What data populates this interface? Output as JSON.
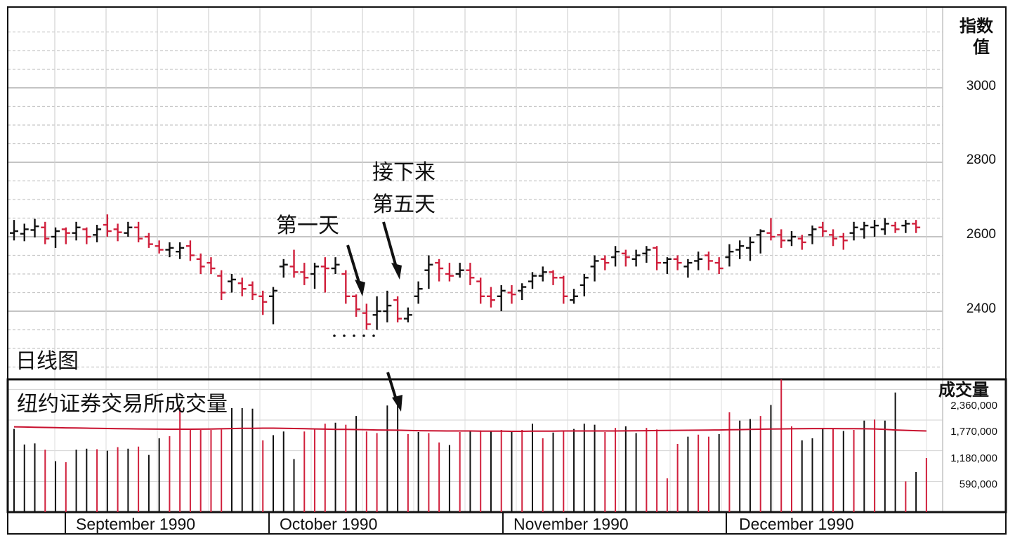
{
  "chart_data": {
    "type": "ohlc",
    "title": "",
    "panel_label": "日线图",
    "y_axis_label": "指数值",
    "y_ticks": [
      "2400",
      "2600",
      "2800",
      "3000"
    ],
    "y_range": [
      2180,
      2800
    ],
    "grid": true,
    "annotations": {
      "first_day": "第一天",
      "fifth_day_line1": "接下来",
      "fifth_day_line2": "第五天"
    },
    "x_months": [
      "September 1990",
      "October 1990",
      "November 1990",
      "December 1990"
    ],
    "colors": {
      "up": "#111111",
      "down": "#d0203c",
      "average": "#c8102e",
      "grid": "#c8c8c8"
    },
    "bars": [
      {
        "date": "1990-09-04",
        "open": 2610,
        "high": 2645,
        "low": 2590,
        "close": 2615,
        "dir": "up"
      },
      {
        "date": "1990-09-05",
        "open": 2608,
        "high": 2635,
        "low": 2588,
        "close": 2620,
        "dir": "up"
      },
      {
        "date": "1990-09-06",
        "open": 2618,
        "high": 2648,
        "low": 2598,
        "close": 2628,
        "dir": "up"
      },
      {
        "date": "1990-09-07",
        "open": 2625,
        "high": 2640,
        "low": 2580,
        "close": 2595,
        "dir": "down"
      },
      {
        "date": "1990-09-10",
        "open": 2600,
        "high": 2625,
        "low": 2570,
        "close": 2615,
        "dir": "up"
      },
      {
        "date": "1990-09-11",
        "open": 2620,
        "high": 2625,
        "low": 2580,
        "close": 2610,
        "dir": "down"
      },
      {
        "date": "1990-09-12",
        "open": 2610,
        "high": 2640,
        "low": 2590,
        "close": 2625,
        "dir": "up"
      },
      {
        "date": "1990-09-13",
        "open": 2620,
        "high": 2625,
        "low": 2580,
        "close": 2600,
        "dir": "down"
      },
      {
        "date": "1990-09-14",
        "open": 2605,
        "high": 2632,
        "low": 2585,
        "close": 2620,
        "dir": "up"
      },
      {
        "date": "1990-09-17",
        "open": 2632,
        "high": 2660,
        "low": 2600,
        "close": 2615,
        "dir": "down"
      },
      {
        "date": "1990-09-18",
        "open": 2620,
        "high": 2635,
        "low": 2588,
        "close": 2612,
        "dir": "down"
      },
      {
        "date": "1990-09-19",
        "open": 2610,
        "high": 2640,
        "low": 2600,
        "close": 2625,
        "dir": "up"
      },
      {
        "date": "1990-09-20",
        "open": 2625,
        "high": 2640,
        "low": 2585,
        "close": 2595,
        "dir": "down"
      },
      {
        "date": "1990-09-21",
        "open": 2600,
        "high": 2610,
        "low": 2570,
        "close": 2580,
        "dir": "down"
      },
      {
        "date": "1990-09-24",
        "open": 2575,
        "high": 2590,
        "low": 2555,
        "close": 2565,
        "dir": "down"
      },
      {
        "date": "1990-09-25",
        "open": 2565,
        "high": 2585,
        "low": 2545,
        "close": 2570,
        "dir": "up"
      },
      {
        "date": "1990-09-26",
        "open": 2560,
        "high": 2585,
        "low": 2540,
        "close": 2570,
        "dir": "up"
      },
      {
        "date": "1990-09-27",
        "open": 2575,
        "high": 2590,
        "low": 2535,
        "close": 2550,
        "dir": "down"
      },
      {
        "date": "1990-09-28",
        "open": 2540,
        "high": 2555,
        "low": 2500,
        "close": 2520,
        "dir": "down"
      },
      {
        "date": "1990-10-01",
        "open": 2530,
        "high": 2545,
        "low": 2500,
        "close": 2515,
        "dir": "down"
      },
      {
        "date": "1990-10-02",
        "open": 2495,
        "high": 2510,
        "low": 2430,
        "close": 2450,
        "dir": "down"
      },
      {
        "date": "1990-10-03",
        "open": 2480,
        "high": 2500,
        "low": 2450,
        "close": 2485,
        "dir": "up"
      },
      {
        "date": "1990-10-04",
        "open": 2475,
        "high": 2490,
        "low": 2440,
        "close": 2460,
        "dir": "down"
      },
      {
        "date": "1990-10-05",
        "open": 2470,
        "high": 2480,
        "low": 2430,
        "close": 2445,
        "dir": "down"
      },
      {
        "date": "1990-10-08",
        "open": 2440,
        "high": 2455,
        "low": 2390,
        "close": 2425,
        "dir": "down"
      },
      {
        "date": "1990-10-09",
        "open": 2440,
        "high": 2465,
        "low": 2365,
        "close": 2455,
        "dir": "up"
      },
      {
        "date": "1990-10-10",
        "open": 2520,
        "high": 2540,
        "low": 2490,
        "close": 2525,
        "dir": "up"
      },
      {
        "date": "1990-10-11",
        "open": 2520,
        "high": 2565,
        "low": 2490,
        "close": 2505,
        "dir": "down"
      },
      {
        "date": "1990-10-12",
        "open": 2505,
        "high": 2530,
        "low": 2470,
        "close": 2490,
        "dir": "down"
      },
      {
        "date": "1990-10-15",
        "open": 2500,
        "high": 2530,
        "low": 2460,
        "close": 2520,
        "dir": "up"
      },
      {
        "date": "1990-10-16",
        "open": 2520,
        "high": 2545,
        "low": 2450,
        "close": 2515,
        "dir": "down"
      },
      {
        "date": "1990-10-17",
        "open": 2515,
        "high": 2545,
        "low": 2500,
        "close": 2525,
        "dir": "up"
      },
      {
        "date": "1990-10-18",
        "open": 2500,
        "high": 2510,
        "low": 2420,
        "close": 2440,
        "dir": "down"
      },
      {
        "date": "1990-10-19",
        "open": 2440,
        "high": 2445,
        "low": 2385,
        "close": 2405,
        "dir": "down"
      },
      {
        "date": "1990-10-22",
        "open": 2395,
        "high": 2420,
        "low": 2350,
        "close": 2365,
        "dir": "down"
      },
      {
        "date": "1990-10-23",
        "open": 2390,
        "high": 2440,
        "low": 2350,
        "close": 2400,
        "dir": "up"
      },
      {
        "date": "1990-10-24",
        "open": 2400,
        "high": 2455,
        "low": 2370,
        "close": 2415,
        "dir": "up"
      },
      {
        "date": "1990-10-25",
        "open": 2430,
        "high": 2440,
        "low": 2370,
        "close": 2380,
        "dir": "down"
      },
      {
        "date": "1990-10-26",
        "open": 2380,
        "high": 2410,
        "low": 2370,
        "close": 2390,
        "dir": "up"
      },
      {
        "date": "1990-10-29",
        "open": 2440,
        "high": 2480,
        "low": 2420,
        "close": 2460,
        "dir": "up"
      },
      {
        "date": "1990-10-30",
        "open": 2510,
        "high": 2550,
        "low": 2460,
        "close": 2525,
        "dir": "up"
      },
      {
        "date": "1990-10-31",
        "open": 2530,
        "high": 2540,
        "low": 2480,
        "close": 2515,
        "dir": "down"
      },
      {
        "date": "1990-11-01",
        "open": 2500,
        "high": 2530,
        "low": 2480,
        "close": 2495,
        "dir": "down"
      },
      {
        "date": "1990-11-02",
        "open": 2500,
        "high": 2530,
        "low": 2490,
        "close": 2510,
        "dir": "up"
      },
      {
        "date": "1990-11-05",
        "open": 2510,
        "high": 2530,
        "low": 2470,
        "close": 2490,
        "dir": "down"
      },
      {
        "date": "1990-11-06",
        "open": 2480,
        "high": 2490,
        "low": 2420,
        "close": 2440,
        "dir": "down"
      },
      {
        "date": "1990-11-07",
        "open": 2440,
        "high": 2465,
        "low": 2410,
        "close": 2430,
        "dir": "down"
      },
      {
        "date": "1990-11-08",
        "open": 2440,
        "high": 2470,
        "low": 2400,
        "close": 2455,
        "dir": "up"
      },
      {
        "date": "1990-11-09",
        "open": 2450,
        "high": 2470,
        "low": 2420,
        "close": 2445,
        "dir": "down"
      },
      {
        "date": "1990-11-12",
        "open": 2455,
        "high": 2475,
        "low": 2430,
        "close": 2465,
        "dir": "up"
      },
      {
        "date": "1990-11-13",
        "open": 2480,
        "high": 2505,
        "low": 2460,
        "close": 2495,
        "dir": "up"
      },
      {
        "date": "1990-11-14",
        "open": 2495,
        "high": 2520,
        "low": 2480,
        "close": 2505,
        "dir": "up"
      },
      {
        "date": "1990-11-15",
        "open": 2505,
        "high": 2510,
        "low": 2470,
        "close": 2490,
        "dir": "down"
      },
      {
        "date": "1990-11-16",
        "open": 2490,
        "high": 2495,
        "low": 2420,
        "close": 2440,
        "dir": "down"
      },
      {
        "date": "1990-11-19",
        "open": 2430,
        "high": 2460,
        "low": 2420,
        "close": 2440,
        "dir": "up"
      },
      {
        "date": "1990-11-20",
        "open": 2470,
        "high": 2500,
        "low": 2440,
        "close": 2490,
        "dir": "up"
      },
      {
        "date": "1990-11-21",
        "open": 2520,
        "high": 2550,
        "low": 2480,
        "close": 2535,
        "dir": "up"
      },
      {
        "date": "1990-11-23",
        "open": 2540,
        "high": 2550,
        "low": 2510,
        "close": 2530,
        "dir": "down"
      },
      {
        "date": "1990-11-26",
        "open": 2545,
        "high": 2575,
        "low": 2520,
        "close": 2560,
        "dir": "up"
      },
      {
        "date": "1990-11-27",
        "open": 2555,
        "high": 2565,
        "low": 2520,
        "close": 2545,
        "dir": "down"
      },
      {
        "date": "1990-11-28",
        "open": 2540,
        "high": 2565,
        "low": 2520,
        "close": 2550,
        "dir": "up"
      },
      {
        "date": "1990-11-29",
        "open": 2555,
        "high": 2575,
        "low": 2530,
        "close": 2565,
        "dir": "up"
      },
      {
        "date": "1990-11-30",
        "open": 2570,
        "high": 2575,
        "low": 2510,
        "close": 2530,
        "dir": "down"
      },
      {
        "date": "1990-12-03",
        "open": 2530,
        "high": 2545,
        "low": 2500,
        "close": 2540,
        "dir": "up"
      },
      {
        "date": "1990-12-04",
        "open": 2540,
        "high": 2550,
        "low": 2510,
        "close": 2530,
        "dir": "down"
      },
      {
        "date": "1990-12-05",
        "open": 2520,
        "high": 2540,
        "low": 2490,
        "close": 2530,
        "dir": "up"
      },
      {
        "date": "1990-12-06",
        "open": 2535,
        "high": 2560,
        "low": 2510,
        "close": 2540,
        "dir": "up"
      },
      {
        "date": "1990-12-07",
        "open": 2550,
        "high": 2560,
        "low": 2510,
        "close": 2535,
        "dir": "down"
      },
      {
        "date": "1990-12-10",
        "open": 2530,
        "high": 2545,
        "low": 2500,
        "close": 2515,
        "dir": "down"
      },
      {
        "date": "1990-12-11",
        "open": 2545,
        "high": 2580,
        "low": 2520,
        "close": 2560,
        "dir": "up"
      },
      {
        "date": "1990-12-12",
        "open": 2565,
        "high": 2590,
        "low": 2540,
        "close": 2575,
        "dir": "up"
      },
      {
        "date": "1990-12-13",
        "open": 2570,
        "high": 2600,
        "low": 2535,
        "close": 2585,
        "dir": "up"
      },
      {
        "date": "1990-12-14",
        "open": 2605,
        "high": 2620,
        "low": 2555,
        "close": 2615,
        "dir": "up"
      },
      {
        "date": "1990-12-17",
        "open": 2610,
        "high": 2650,
        "low": 2590,
        "close": 2600,
        "dir": "down"
      },
      {
        "date": "1990-12-18",
        "open": 2605,
        "high": 2620,
        "low": 2570,
        "close": 2590,
        "dir": "down"
      },
      {
        "date": "1990-12-19",
        "open": 2590,
        "high": 2615,
        "low": 2575,
        "close": 2600,
        "dir": "up"
      },
      {
        "date": "1990-12-20",
        "open": 2595,
        "high": 2605,
        "low": 2565,
        "close": 2585,
        "dir": "down"
      },
      {
        "date": "1990-12-21",
        "open": 2605,
        "high": 2630,
        "low": 2580,
        "close": 2620,
        "dir": "up"
      },
      {
        "date": "1990-12-24",
        "open": 2625,
        "high": 2640,
        "low": 2600,
        "close": 2615,
        "dir": "down"
      },
      {
        "date": "1990-12-26",
        "open": 2605,
        "high": 2620,
        "low": 2575,
        "close": 2595,
        "dir": "down"
      },
      {
        "date": "1990-12-27",
        "open": 2600,
        "high": 2610,
        "low": 2565,
        "close": 2590,
        "dir": "down"
      },
      {
        "date": "1990-12-28",
        "open": 2610,
        "high": 2640,
        "low": 2590,
        "close": 2625,
        "dir": "up"
      },
      {
        "date": "1990-12-31",
        "open": 2620,
        "high": 2640,
        "low": 2595,
        "close": 2630,
        "dir": "up"
      },
      {
        "date": "1991-01-02",
        "open": 2625,
        "high": 2645,
        "low": 2600,
        "close": 2630,
        "dir": "up"
      },
      {
        "date": "1991-01-03",
        "open": 2620,
        "high": 2650,
        "low": 2605,
        "close": 2635,
        "dir": "up"
      },
      {
        "date": "1991-01-04",
        "open": 2630,
        "high": 2640,
        "low": 2610,
        "close": 2620,
        "dir": "down"
      },
      {
        "date": "1991-01-07",
        "open": 2630,
        "high": 2645,
        "low": 2610,
        "close": 2635,
        "dir": "up"
      },
      {
        "date": "1991-01-08",
        "open": 2635,
        "high": 2645,
        "low": 2610,
        "close": 2625,
        "dir": "down"
      }
    ],
    "volume": {
      "label": "纽约证券交易所成交量",
      "axis_label": "成交量",
      "ticks": [
        "590,000",
        "1,180,000",
        "1,770,000",
        "2,360,000"
      ],
      "tick_values": [
        590000,
        1180000,
        1770000,
        2360000
      ],
      "y_range": [
        0,
        2540000
      ],
      "values": [
        1600000,
        1300000,
        1320000,
        1200000,
        980000,
        960000,
        1200000,
        1220000,
        1210000,
        1180000,
        1250000,
        1220000,
        1260000,
        1100000,
        1420000,
        1460000,
        2000000,
        1600000,
        1580000,
        1580000,
        1590000,
        2000000,
        2000000,
        1990000,
        1380000,
        1480000,
        1550000,
        1020000,
        1550000,
        1600000,
        1700000,
        1720000,
        1680000,
        1850000,
        1550000,
        1520000,
        2050000,
        2200000,
        1500000,
        1540000,
        1520000,
        1340000,
        1290000,
        1540000,
        1550000,
        1570000,
        1560000,
        1580000,
        1540000,
        1580000,
        1700000,
        1420000,
        1530000,
        1560000,
        1600000,
        1700000,
        1680000,
        1540000,
        1620000,
        1650000,
        1520000,
        1620000,
        1590000,
        650000,
        1310000,
        1450000,
        1490000,
        1450000,
        1500000,
        1920000,
        1760000,
        1790000,
        1850000,
        2060000,
        2550000,
        1650000,
        1380000,
        1420000,
        1620000,
        1610000,
        1560000,
        1580000,
        1760000,
        1780000,
        1760000,
        2300000,
        590000,
        770000,
        1040000
      ],
      "average": [
        1640000,
        1636000,
        1632000,
        1628000,
        1624000,
        1620000,
        1617000,
        1614000,
        1611000,
        1608000,
        1605000,
        1602000,
        1600000,
        1598000,
        1596000,
        1594000,
        1594000,
        1594000,
        1596000,
        1598000,
        1602000,
        1606000,
        1610000,
        1612000,
        1614000,
        1614000,
        1612000,
        1608000,
        1604000,
        1600000,
        1596000,
        1592000,
        1590000,
        1588000,
        1585000,
        1580000,
        1578000,
        1575000,
        1570000,
        1566000,
        1564000,
        1562000,
        1560000,
        1560000,
        1560000,
        1558000,
        1558000,
        1556000,
        1554000,
        1554000,
        1556000,
        1556000,
        1558000,
        1560000,
        1560000,
        1560000,
        1560000,
        1560000,
        1560000,
        1562000,
        1564000,
        1566000,
        1568000,
        1570000,
        1572000,
        1574000,
        1576000,
        1578000,
        1580000,
        1583000,
        1586000,
        1590000,
        1594000,
        1598000,
        1600000,
        1602000,
        1604000,
        1606000,
        1606000,
        1606000,
        1605000,
        1604000,
        1603000,
        1600000,
        1590000,
        1580000,
        1572000,
        1566000,
        1560000
      ],
      "colors": [
        "black",
        "black",
        "black",
        "red",
        "black",
        "red",
        "black",
        "black",
        "red",
        "black",
        "red",
        "black",
        "red",
        "black",
        "black",
        "red",
        "red",
        "red",
        "red",
        "red",
        "red",
        "black",
        "black",
        "black",
        "red",
        "black",
        "black",
        "black",
        "red",
        "red",
        "red",
        "black",
        "red",
        "black",
        "red",
        "red",
        "black",
        "black",
        "red",
        "black",
        "red",
        "red",
        "black",
        "red",
        "black",
        "red",
        "black",
        "red",
        "black",
        "red",
        "black",
        "red",
        "black",
        "red",
        "black",
        "black",
        "black",
        "red",
        "red",
        "black",
        "black",
        "red",
        "red",
        "red",
        "red",
        "black",
        "red",
        "red",
        "black",
        "red",
        "black",
        "black",
        "red",
        "black",
        "red",
        "red",
        "black",
        "black",
        "black",
        "red",
        "black",
        "red",
        "black",
        "red",
        "black",
        "black",
        "red",
        "black",
        "red"
      ]
    }
  }
}
